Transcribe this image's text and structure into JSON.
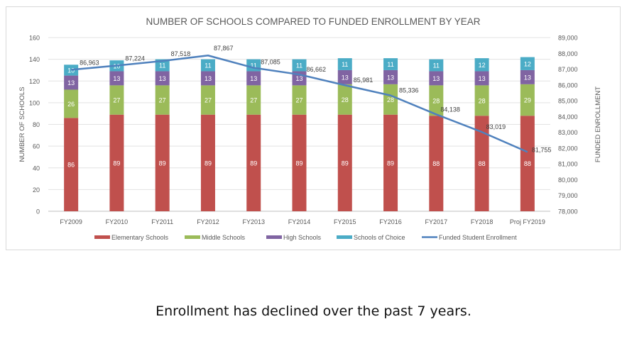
{
  "slide": {
    "caption": "Enrollment has declined over the past 7 years."
  },
  "chart_data": {
    "type": "bar",
    "stacked": true,
    "title": "NUMBER OF SCHOOLS COMPARED TO FUNDED ENROLLMENT BY YEAR",
    "xlabel": "",
    "ylabel": "NUMBER OF SCHOOLS",
    "y2label": "FUNDED ENROLLMENT",
    "ylim": [
      0,
      160
    ],
    "yticks": [
      0,
      20,
      40,
      60,
      80,
      100,
      120,
      140,
      160
    ],
    "y2lim": [
      78000,
      89000
    ],
    "y2ticks": [
      78000,
      79000,
      80000,
      81000,
      82000,
      83000,
      84000,
      85000,
      86000,
      87000,
      88000,
      89000
    ],
    "y2tick_labels": [
      "78,000",
      "79,000",
      "80,000",
      "81,000",
      "82,000",
      "83,000",
      "84,000",
      "85,000",
      "86,000",
      "87,000",
      "88,000",
      "89,000"
    ],
    "grid": true,
    "legend_position": "bottom",
    "categories": [
      "FY2009",
      "FY2010",
      "FY2011",
      "FY2012",
      "FY2013",
      "FY2014",
      "FY2015",
      "FY2016",
      "FY2017",
      "FY2018",
      "Proj FY2019"
    ],
    "series": [
      {
        "name": "Elementary Schools",
        "type": "bar",
        "axis": "left",
        "color": "#c0504d",
        "values": [
          86,
          89,
          89,
          89,
          89,
          89,
          89,
          89,
          88,
          88,
          88
        ]
      },
      {
        "name": "Middle Schools",
        "type": "bar",
        "axis": "left",
        "color": "#9bbb59",
        "values": [
          26,
          27,
          27,
          27,
          27,
          27,
          28,
          28,
          28,
          28,
          29
        ]
      },
      {
        "name": "High Schools",
        "type": "bar",
        "axis": "left",
        "color": "#8064a2",
        "values": [
          13,
          13,
          13,
          13,
          13,
          13,
          13,
          13,
          13,
          13,
          13
        ]
      },
      {
        "name": "Schools of Choice",
        "type": "bar",
        "axis": "left",
        "color": "#4bacc6",
        "values": [
          10,
          10,
          11,
          11,
          11,
          11,
          11,
          11,
          11,
          12,
          12
        ]
      },
      {
        "name": "Funded Student Enrollment",
        "type": "line",
        "axis": "right",
        "color": "#4f81bd",
        "values": [
          86963,
          87224,
          87518,
          87867,
          87085,
          86662,
          85981,
          85336,
          84138,
          83019,
          81755
        ],
        "labels": [
          "86,963",
          "87,224",
          "87,518",
          "87,867",
          "87,085",
          "86,662",
          "85,981",
          "85,336",
          "84,138",
          "83,019",
          "81,755"
        ]
      }
    ]
  }
}
